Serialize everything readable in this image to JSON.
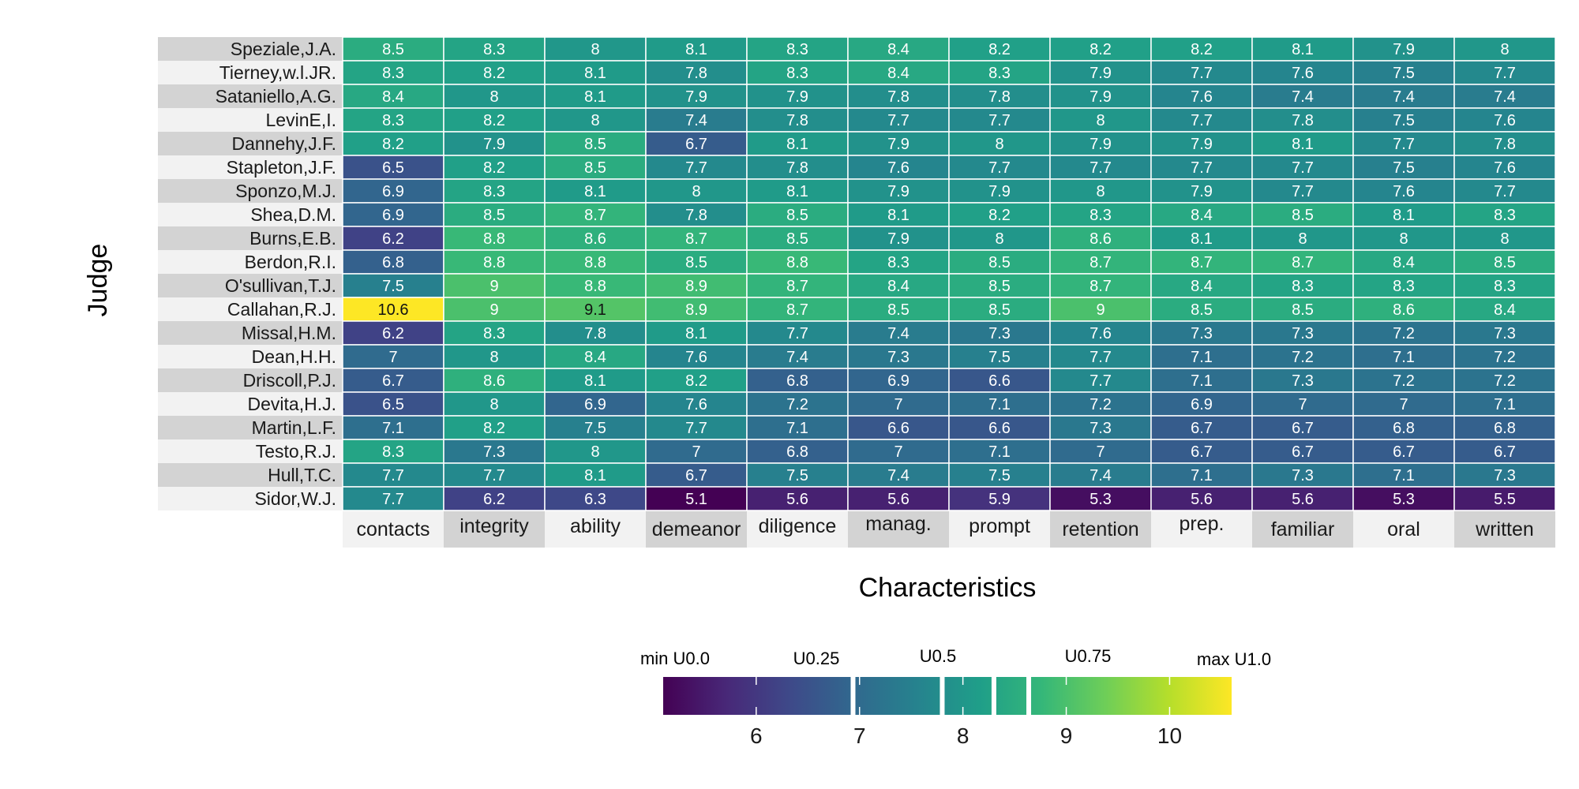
{
  "chart_data": {
    "type": "heatmap",
    "xlabel": "Characteristics",
    "ylabel": "Judge",
    "columns": [
      "contacts",
      "integrity",
      "ability",
      "demeanor",
      "diligence",
      "manag.",
      "prompt",
      "retention",
      "prep.",
      "familiar",
      "oral",
      "written"
    ],
    "rows": [
      "Speziale,J.A.",
      "Tierney,w.l.JR.",
      "Sataniello,A.G.",
      "LevinE,I.",
      "Dannehy,J.F.",
      "Stapleton,J.F.",
      "Sponzo,M.J.",
      "Shea,D.M.",
      "Burns,E.B.",
      "Berdon,R.I.",
      "O'sullivan,T.J.",
      "Callahan,R.J.",
      "Missal,H.M.",
      "Dean,H.H.",
      "Driscoll,P.J.",
      "Devita,H.J.",
      "Martin,L.F.",
      "Testo,R.J.",
      "Hull,T.C.",
      "Sidor,W.J."
    ],
    "values": [
      [
        "8.5",
        "8.3",
        "8",
        "8.1",
        "8.3",
        "8.4",
        "8.2",
        "8.2",
        "8.2",
        "8.1",
        "7.9",
        "8"
      ],
      [
        "8.3",
        "8.2",
        "8.1",
        "7.8",
        "8.3",
        "8.4",
        "8.3",
        "7.9",
        "7.7",
        "7.6",
        "7.5",
        "7.7"
      ],
      [
        "8.4",
        "8",
        "8.1",
        "7.9",
        "7.9",
        "7.8",
        "7.8",
        "7.9",
        "7.6",
        "7.4",
        "7.4",
        "7.4"
      ],
      [
        "8.3",
        "8.2",
        "8",
        "7.4",
        "7.8",
        "7.7",
        "7.7",
        "8",
        "7.7",
        "7.8",
        "7.5",
        "7.6"
      ],
      [
        "8.2",
        "7.9",
        "8.5",
        "6.7",
        "8.1",
        "7.9",
        "8",
        "7.9",
        "7.9",
        "8.1",
        "7.7",
        "7.8"
      ],
      [
        "6.5",
        "8.2",
        "8.5",
        "7.7",
        "7.8",
        "7.6",
        "7.7",
        "7.7",
        "7.7",
        "7.7",
        "7.5",
        "7.6"
      ],
      [
        "6.9",
        "8.3",
        "8.1",
        "8",
        "8.1",
        "7.9",
        "7.9",
        "8",
        "7.9",
        "7.7",
        "7.6",
        "7.7"
      ],
      [
        "6.9",
        "8.5",
        "8.7",
        "7.8",
        "8.5",
        "8.1",
        "8.2",
        "8.3",
        "8.4",
        "8.5",
        "8.1",
        "8.3"
      ],
      [
        "6.2",
        "8.8",
        "8.6",
        "8.7",
        "8.5",
        "7.9",
        "8",
        "8.6",
        "8.1",
        "8",
        "8",
        "8"
      ],
      [
        "6.8",
        "8.8",
        "8.8",
        "8.5",
        "8.8",
        "8.3",
        "8.5",
        "8.7",
        "8.7",
        "8.7",
        "8.4",
        "8.5"
      ],
      [
        "7.5",
        "9",
        "8.8",
        "8.9",
        "8.7",
        "8.4",
        "8.5",
        "8.7",
        "8.4",
        "8.3",
        "8.3",
        "8.3"
      ],
      [
        "10.6",
        "9",
        "9.1",
        "8.9",
        "8.7",
        "8.5",
        "8.5",
        "9",
        "8.5",
        "8.5",
        "8.6",
        "8.4"
      ],
      [
        "6.2",
        "8.3",
        "7.8",
        "8.1",
        "7.7",
        "7.4",
        "7.3",
        "7.6",
        "7.3",
        "7.3",
        "7.2",
        "7.3"
      ],
      [
        "7",
        "8",
        "8.4",
        "7.6",
        "7.4",
        "7.3",
        "7.5",
        "7.7",
        "7.1",
        "7.2",
        "7.1",
        "7.2"
      ],
      [
        "6.7",
        "8.6",
        "8.1",
        "8.2",
        "6.8",
        "6.9",
        "6.6",
        "7.7",
        "7.1",
        "7.3",
        "7.2",
        "7.2"
      ],
      [
        "6.5",
        "8",
        "6.9",
        "7.6",
        "7.2",
        "7",
        "7.1",
        "7.2",
        "6.9",
        "7",
        "7",
        "7.1"
      ],
      [
        "7.1",
        "8.2",
        "7.5",
        "7.7",
        "7.1",
        "6.6",
        "6.6",
        "7.3",
        "6.7",
        "6.7",
        "6.8",
        "6.8"
      ],
      [
        "8.3",
        "7.3",
        "8",
        "7",
        "6.8",
        "7",
        "7.1",
        "7",
        "6.7",
        "6.7",
        "6.7",
        "6.7"
      ],
      [
        "7.7",
        "7.7",
        "8.1",
        "6.7",
        "7.5",
        "7.4",
        "7.5",
        "7.4",
        "7.1",
        "7.3",
        "7.1",
        "7.3"
      ],
      [
        "7.7",
        "6.2",
        "6.3",
        "5.1",
        "5.6",
        "5.6",
        "5.9",
        "5.3",
        "5.6",
        "5.6",
        "5.3",
        "5.5"
      ]
    ],
    "legend": {
      "labels": [
        "min U0.0",
        "U0.25",
        "U0.5",
        "U0.75",
        "max U1.0"
      ],
      "ticks": [
        "6",
        "7",
        "8",
        "9",
        "10"
      ],
      "range": [
        5.1,
        10.6
      ],
      "quantile_breaks": [
        5.1,
        6.937,
        7.8,
        8.3,
        8.637,
        10.6
      ]
    },
    "colors": {
      "viridis": [
        "#440154",
        "#482878",
        "#3e4989",
        "#31688e",
        "#26828e",
        "#1f9e89",
        "#35b779",
        "#6ece58",
        "#b5de2b",
        "#fde725"
      ],
      "label_band_dark": "#d3d3d3",
      "label_band_light": "#f2f2f2",
      "cell_border": "#ffffff"
    }
  }
}
